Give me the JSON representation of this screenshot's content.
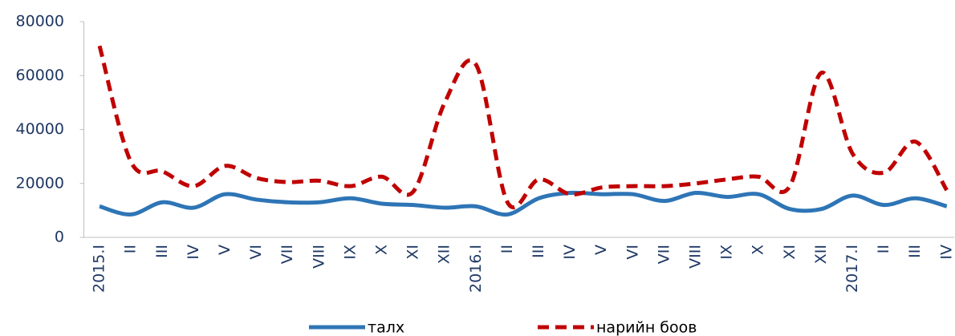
{
  "chart_data": {
    "type": "line",
    "categories": [
      "2015.I",
      "II",
      "III",
      "IV",
      "V",
      "VI",
      "VII",
      "VIII",
      "IX",
      "X",
      "XI",
      "XII",
      "2016.I",
      "II",
      "III",
      "IV",
      "V",
      "VI",
      "VII",
      "VIII",
      "IX",
      "X",
      "XI",
      "XII",
      "2017.I",
      "II",
      "III",
      "IV"
    ],
    "series": [
      {
        "name": "талх",
        "color": "#2e75b6",
        "style": "solid",
        "values": [
          11500,
          8500,
          13000,
          11000,
          16000,
          14000,
          13000,
          13000,
          14500,
          12500,
          12000,
          11000,
          11500,
          8500,
          14500,
          16500,
          16000,
          16000,
          13500,
          16500,
          15000,
          16000,
          10500,
          10500,
          15500,
          12000,
          14500,
          11500
        ]
      },
      {
        "name": "нарийн боов",
        "color": "#c00000",
        "style": "dashed",
        "values": [
          71000,
          28000,
          24500,
          19000,
          26500,
          22000,
          20500,
          21000,
          19000,
          22500,
          17000,
          50000,
          64000,
          13000,
          21500,
          16000,
          18500,
          19000,
          19000,
          20000,
          21500,
          22500,
          19000,
          61000,
          31000,
          24000,
          35500,
          17500
        ]
      }
    ],
    "ylim": [
      0,
      80000
    ],
    "yticks": [
      0,
      20000,
      40000,
      60000,
      80000
    ],
    "grid": false,
    "legend": "bottom"
  }
}
